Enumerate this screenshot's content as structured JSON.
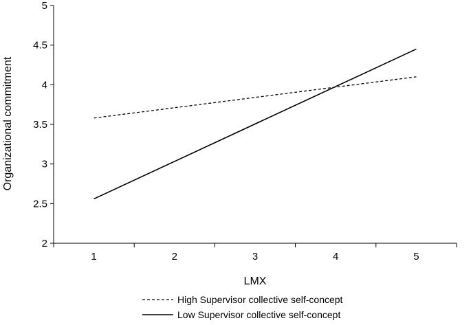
{
  "chart_data": {
    "type": "line",
    "xlabel": "LMX",
    "ylabel": "Organizational commitment",
    "x": [
      1,
      5
    ],
    "xticks": [
      "1",
      "2",
      "3",
      "4",
      "5"
    ],
    "yticks": [
      "2",
      "2.5",
      "3",
      "3.5",
      "4",
      "4.5",
      "5"
    ],
    "xlim": [
      0.5,
      5.5
    ],
    "ylim": [
      2,
      5
    ],
    "grid": false,
    "legend_position": "bottom",
    "series": [
      {
        "name": "High Supervisor collective self-concept",
        "style": "dashed",
        "color": "#000000",
        "values": [
          3.58,
          4.1
        ]
      },
      {
        "name": "Low Supervisor collective self-concept",
        "style": "solid",
        "color": "#000000",
        "values": [
          2.56,
          4.45
        ]
      }
    ]
  }
}
